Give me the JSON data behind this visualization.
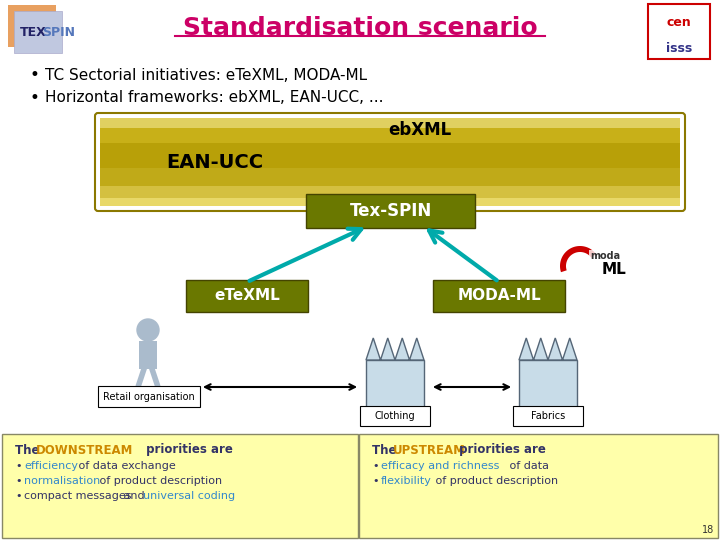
{
  "title": "Standardisation scenario",
  "title_color": "#cc0066",
  "title_fontsize": 18,
  "bg_color": "#ffffff",
  "bullet1": "TC Sectorial initiatives: eTeXML, MODA-ML",
  "bullet2": "Horizontal frameworks: ebXML, EAN-UCC, ...",
  "label_ebxml": "ebXML",
  "label_eanucc": "EAN-UCC",
  "label_texspin": "Tex-SPIN",
  "label_etexml": "eTeXML",
  "label_modaml": "MODA-ML",
  "label_retail": "Retail organisation",
  "label_clothing": "Clothing",
  "label_fabrics": "Fabrics",
  "arrow_color": "#00aaaa",
  "down_box_color": "#ffffaa",
  "up_box_color": "#ffffaa",
  "downstream_title": "The DOWNSTREAM priorities are",
  "downstream_word": "DOWNSTREAM",
  "downstream_items": [
    "efficiency of data exchange",
    "normalisation of product description",
    "compact messages and universal coding"
  ],
  "upstream_title": "The UPSTREAM priorities are",
  "upstream_word": "UPSTREAM",
  "upstream_items": [
    "efficacy and richness of data",
    "flexibility of product description"
  ],
  "highlight_color": "#cc8800",
  "text_color": "#333366",
  "item_highlight_color": "#3388cc"
}
